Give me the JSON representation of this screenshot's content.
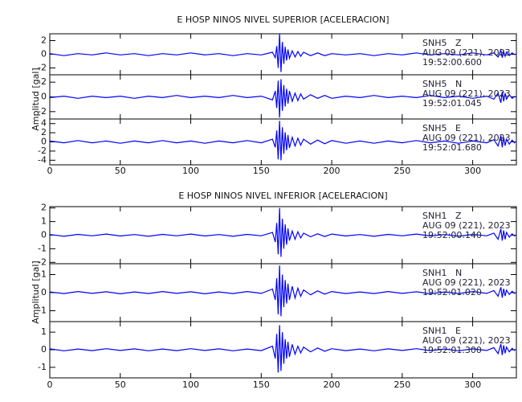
{
  "chart_data": [
    {
      "type": "line",
      "title": "E HOSP NINOS NIVEL SUPERIOR [ACELERACION]",
      "ylabel": "Amplitud [gal]",
      "xlim": [
        0,
        331
      ],
      "xticks": [
        0,
        50,
        100,
        150,
        200,
        250,
        300
      ],
      "x": [
        0,
        10,
        20,
        30,
        40,
        50,
        60,
        70,
        80,
        90,
        100,
        110,
        120,
        130,
        140,
        150,
        158,
        160,
        161,
        162,
        163,
        164,
        165,
        166,
        167,
        168,
        169,
        170,
        172,
        174,
        176,
        178,
        180,
        185,
        190,
        195,
        200,
        210,
        220,
        230,
        240,
        250,
        260,
        270,
        280,
        290,
        300,
        310,
        315,
        318,
        320,
        321,
        322,
        323,
        324,
        326,
        328,
        330
      ],
      "panels": [
        {
          "ylim": [
            -3,
            3
          ],
          "yticks": [
            -2,
            0,
            2
          ],
          "annotations": [
            "SNH5   Z",
            "AUG 09 (221), 2023",
            "19:52:00.600"
          ],
          "series": [
            {
              "color": "#0000ff",
              "values": [
                0.1,
                -0.2,
                0.1,
                -0.1,
                0.2,
                -0.1,
                0.1,
                -0.2,
                0.1,
                -0.1,
                0.2,
                -0.1,
                0.1,
                -0.2,
                0.1,
                -0.1,
                0.3,
                -0.5,
                1.2,
                -2.0,
                3.0,
                -2.6,
                1.8,
                -1.4,
                1.1,
                -0.9,
                0.7,
                -0.6,
                0.5,
                -0.4,
                0.4,
                -0.3,
                0.3,
                -0.2,
                0.2,
                -0.2,
                0.1,
                -0.1,
                0.1,
                -0.2,
                0.1,
                -0.1,
                0.2,
                -0.1,
                0.1,
                -0.1,
                0.2,
                -0.1,
                0.2,
                -0.4,
                0.6,
                -0.5,
                0.4,
                -0.3,
                0.3,
                -0.2,
                0.2,
                -0.1
              ]
            }
          ]
        },
        {
          "ylim": [
            -3,
            3
          ],
          "yticks": [
            -2,
            0,
            2
          ],
          "annotations": [
            "SNH5   N",
            "AUG 09 (221), 2023",
            "19:52:01.045"
          ],
          "series": [
            {
              "color": "#0000ff",
              "values": [
                -0.1,
                0.1,
                -0.2,
                0.1,
                -0.1,
                0.1,
                -0.2,
                0.1,
                -0.1,
                0.2,
                -0.1,
                0.1,
                -0.1,
                0.2,
                -0.1,
                0.1,
                -0.4,
                0.8,
                -1.5,
                2.2,
                -2.8,
                2.4,
                -1.9,
                1.6,
                -1.3,
                1.1,
                -0.9,
                0.8,
                -0.6,
                0.5,
                -0.5,
                0.4,
                -0.3,
                0.3,
                -0.2,
                0.2,
                -0.2,
                0.1,
                -0.1,
                0.2,
                -0.1,
                0.1,
                -0.1,
                0.2,
                -0.1,
                0.1,
                -0.2,
                0.1,
                -0.3,
                0.5,
                -0.8,
                0.7,
                -0.6,
                0.5,
                -0.3,
                0.3,
                -0.2,
                0.1
              ]
            }
          ]
        },
        {
          "ylim": [
            -5,
            5
          ],
          "yticks": [
            -4,
            -2,
            0,
            2,
            4
          ],
          "annotations": [
            "SNH5   E",
            "AUG 09 (221), 2023",
            "19:52:01.680"
          ],
          "series": [
            {
              "color": "#0000ff",
              "values": [
                0.2,
                -0.2,
                0.3,
                -0.2,
                0.2,
                -0.3,
                0.2,
                -0.2,
                0.3,
                -0.2,
                0.2,
                -0.3,
                0.2,
                -0.2,
                0.3,
                -0.2,
                0.6,
                -1.2,
                2.5,
                -3.8,
                4.6,
                -4.0,
                3.2,
                -2.6,
                2.1,
                -1.8,
                1.5,
                -1.3,
                1.0,
                -0.9,
                0.8,
                -0.7,
                0.6,
                -0.5,
                0.4,
                -0.4,
                0.3,
                -0.3,
                0.2,
                -0.3,
                0.2,
                -0.2,
                0.3,
                -0.2,
                0.2,
                -0.3,
                0.2,
                -0.2,
                0.5,
                -0.9,
                1.4,
                -1.2,
                1.0,
                -0.8,
                0.6,
                -0.5,
                0.4,
                -0.3
              ]
            }
          ]
        }
      ]
    },
    {
      "type": "line",
      "title": "E HOSP NINOS NIVEL INFERIOR [ACELERACION]",
      "ylabel": "Amplitud [gal]",
      "xlim": [
        0,
        331
      ],
      "xticks": [
        0,
        50,
        100,
        150,
        200,
        250,
        300
      ],
      "x": [
        0,
        10,
        20,
        30,
        40,
        50,
        60,
        70,
        80,
        90,
        100,
        110,
        120,
        130,
        140,
        150,
        158,
        160,
        161,
        162,
        163,
        164,
        165,
        166,
        167,
        168,
        169,
        170,
        172,
        174,
        176,
        178,
        180,
        185,
        190,
        195,
        200,
        210,
        220,
        230,
        240,
        250,
        260,
        270,
        280,
        290,
        300,
        310,
        315,
        318,
        320,
        321,
        322,
        323,
        324,
        326,
        328,
        330
      ],
      "panels": [
        {
          "ylim": [
            -2.1,
            2.1
          ],
          "yticks": [
            -2,
            -1,
            0,
            1,
            2
          ],
          "annotations": [
            "SNH1   Z",
            "AUG 09 (221), 2023",
            "19:52:00.140"
          ],
          "series": [
            {
              "color": "#0000ff",
              "values": [
                0.05,
                -0.08,
                0.06,
                -0.05,
                0.08,
                -0.06,
                0.05,
                -0.08,
                0.06,
                -0.05,
                0.08,
                -0.06,
                0.05,
                -0.08,
                0.06,
                -0.05,
                0.2,
                -0.5,
                0.9,
                -1.4,
                2.0,
                -1.6,
                1.2,
                -1.0,
                0.8,
                -0.7,
                0.5,
                -0.4,
                0.3,
                -0.3,
                0.25,
                -0.2,
                0.15,
                -0.12,
                0.1,
                -0.1,
                0.08,
                -0.06,
                0.05,
                -0.08,
                0.06,
                -0.05,
                0.08,
                -0.06,
                0.05,
                -0.08,
                0.06,
                -0.05,
                0.15,
                -0.3,
                0.45,
                -0.4,
                0.35,
                -0.3,
                0.2,
                -0.15,
                0.1,
                -0.08
              ]
            }
          ]
        },
        {
          "ylim": [
            -1.6,
            1.6
          ],
          "yticks": [
            -1,
            0,
            1
          ],
          "annotations": [
            "SNH1   N",
            "AUG 09 (221), 2023",
            "19:52:01.020"
          ],
          "series": [
            {
              "color": "#0000ff",
              "values": [
                0.04,
                -0.05,
                0.06,
                -0.04,
                0.05,
                -0.06,
                0.04,
                -0.05,
                0.06,
                -0.04,
                0.05,
                -0.06,
                0.04,
                -0.05,
                0.06,
                -0.04,
                0.2,
                -0.4,
                0.8,
                -1.2,
                1.5,
                -1.3,
                1.0,
                -0.8,
                0.7,
                -0.6,
                0.5,
                -0.4,
                0.35,
                -0.3,
                0.25,
                -0.2,
                0.15,
                -0.12,
                0.1,
                -0.08,
                0.06,
                -0.05,
                0.04,
                -0.05,
                0.06,
                -0.04,
                0.05,
                -0.06,
                0.04,
                -0.05,
                0.06,
                -0.04,
                0.12,
                -0.2,
                0.3,
                -0.28,
                0.22,
                -0.18,
                0.14,
                -0.1,
                0.08,
                -0.06
              ]
            }
          ]
        },
        {
          "ylim": [
            -1.6,
            1.6
          ],
          "yticks": [
            -1,
            0,
            1
          ],
          "annotations": [
            "SNH1   E",
            "AUG 09 (221), 2023",
            "19:52:01.300"
          ],
          "series": [
            {
              "color": "#0000ff",
              "values": [
                0.05,
                -0.06,
                0.04,
                -0.05,
                0.06,
                -0.04,
                0.05,
                -0.06,
                0.04,
                -0.05,
                0.06,
                -0.04,
                0.05,
                -0.06,
                0.04,
                -0.05,
                0.2,
                -0.5,
                0.9,
                -1.3,
                1.4,
                -1.2,
                1.0,
                -0.8,
                0.6,
                -0.5,
                0.45,
                -0.4,
                0.3,
                -0.25,
                0.2,
                -0.18,
                0.15,
                -0.12,
                0.1,
                -0.08,
                0.06,
                -0.05,
                0.04,
                -0.06,
                0.05,
                -0.04,
                0.06,
                -0.05,
                0.04,
                -0.06,
                0.05,
                -0.04,
                0.12,
                -0.22,
                0.32,
                -0.3,
                0.25,
                -0.2,
                0.15,
                -0.12,
                0.08,
                -0.06
              ]
            }
          ]
        }
      ]
    }
  ]
}
